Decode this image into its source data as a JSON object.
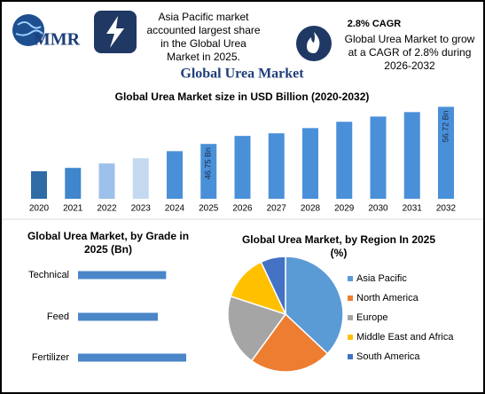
{
  "header": {
    "logo": "MMR",
    "fact1": "Asia Pacific market accounted largest share in the Global Urea Market in 2025.",
    "cagr_title": "2.8% CAGR",
    "fact2": "Global Urea Market to grow at a CAGR of 2.8% during 2026-2032"
  },
  "title": "Global Urea Market",
  "chart_data": [
    {
      "type": "bar",
      "title": "Global Urea Market size in USD Billion (2020-2032)",
      "categories": [
        "2020",
        "2021",
        "2022",
        "2023",
        "2024",
        "2025",
        "2026",
        "2027",
        "2028",
        "2029",
        "2030",
        "2031",
        "2032"
      ],
      "values": [
        39.4,
        40.3,
        41.5,
        42.9,
        44.8,
        46.75,
        48.9,
        49.6,
        51.0,
        52.7,
        54.1,
        55.3,
        56.72
      ],
      "value_labels": [
        null,
        null,
        null,
        null,
        null,
        "46.75 Bn",
        null,
        null,
        null,
        null,
        null,
        null,
        "56.72 Bn"
      ],
      "colors": [
        "#2f6ca6",
        "#3f86cc",
        "#9cc1ea",
        "#c4d9f0",
        "#4a90d9",
        "#4a90d9",
        "#4a90d9",
        "#4a90d9",
        "#4a90d9",
        "#4a90d9",
        "#4a90d9",
        "#4a90d9",
        "#4a90d9"
      ],
      "ylim": [
        32,
        58
      ]
    },
    {
      "type": "bar",
      "orientation": "horizontal",
      "title": "Global Urea Market, by Grade in 2025 (Bn)",
      "categories": [
        "Technical",
        "Feed",
        "Fertilizer"
      ],
      "values": [
        14.9,
        13.5,
        18.3
      ],
      "color": "#4a86c8",
      "xlim": [
        0,
        21
      ]
    },
    {
      "type": "pie",
      "title": "Global Urea Market, by Region In 2025 (%)",
      "categories": [
        "Asia Pacific",
        "North America",
        "Europe",
        "Middle East and Africa",
        "South America"
      ],
      "values": [
        37,
        23,
        20,
        13,
        7
      ],
      "colors": [
        "#5b9bd5",
        "#ed7d31",
        "#a5a5a5",
        "#ffc000",
        "#4472c4"
      ]
    }
  ]
}
